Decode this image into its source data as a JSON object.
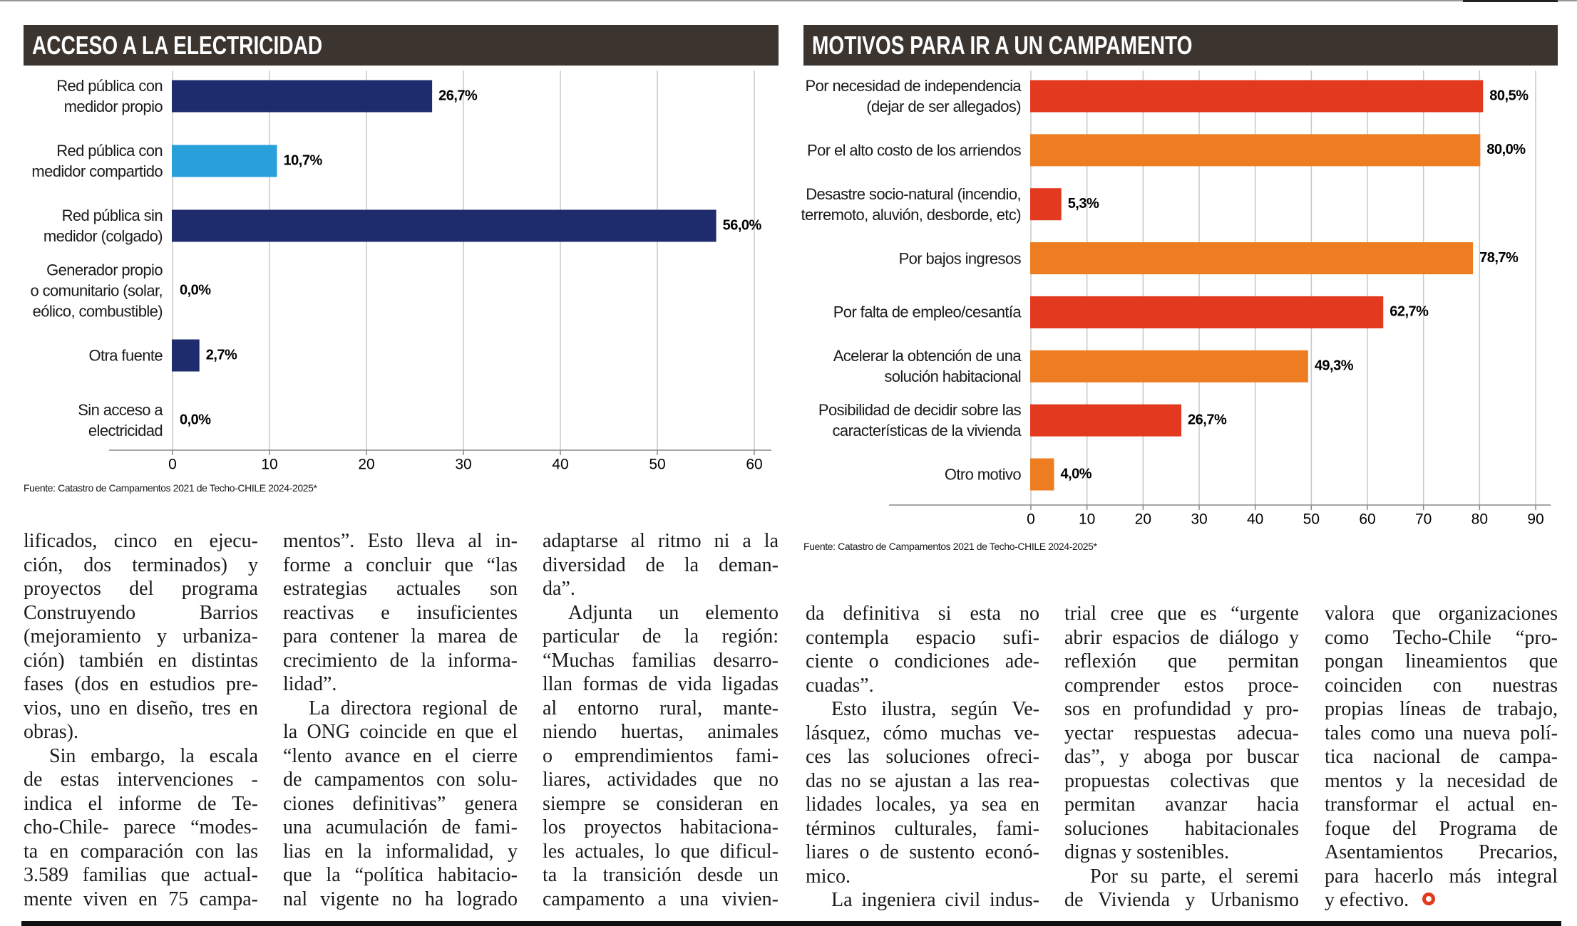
{
  "chart_data": [
    {
      "type": "bar",
      "orientation": "horizontal",
      "title": "ACCESO A LA ELECTRICIDAD",
      "categories": [
        "Red pública con\nmedidor propio",
        "Red pública con\nmedidor compartido",
        "Red pública sin\nmedidor (colgado)",
        "Generador propio\no comunitario (solar,\neólico, combustible)",
        "Otra fuente",
        "Sin acceso a\nelectricidad"
      ],
      "values": [
        26.7,
        10.7,
        56.0,
        0.0,
        2.7,
        0.0
      ],
      "value_labels": [
        "26,7%",
        "10,7%",
        "56,0%",
        "0,0%",
        "2,7%",
        "0,0%"
      ],
      "colors": [
        "#1e2c6e",
        "#2aa0da",
        "#1e2c6e",
        "#2aa0da",
        "#1e2c6e",
        "#2aa0da"
      ],
      "xlim": [
        0,
        60
      ],
      "xticks": [
        0,
        10,
        20,
        30,
        40,
        50,
        60
      ],
      "grid": true,
      "source": "Fuente: Catastro de Campamentos 2021 de Techo-CHILE 2024-2025*"
    },
    {
      "type": "bar",
      "orientation": "horizontal",
      "title": "MOTIVOS PARA IR A UN CAMPAMENTO",
      "categories": [
        "Por necesidad de independencia\n(dejar de ser allegados)",
        "Por el alto costo de los arriendos",
        "Desastre socio-natural (incendio,\nterremoto, aluvión, desborde, etc)",
        "Por bajos ingresos",
        "Por falta de empleo/cesantía",
        "Acelerar la obtención de una\nsolución habitacional",
        "Posibilidad de decidir sobre las\ncaracterísticas de la vivienda",
        "Otro motivo"
      ],
      "values": [
        80.5,
        80.0,
        5.3,
        78.7,
        62.7,
        49.3,
        26.7,
        4.0
      ],
      "value_labels": [
        "80,5%",
        "80,0%",
        "5,3%",
        "78,7%",
        "62,7%",
        "49,3%",
        "26,7%",
        "4,0%"
      ],
      "colors": [
        "#e2391f",
        "#ee7d22",
        "#e2391f",
        "#ee7d22",
        "#e2391f",
        "#ee7d22",
        "#e2391f",
        "#ee7d22"
      ],
      "xlim": [
        0,
        90
      ],
      "xticks": [
        0,
        10,
        20,
        30,
        40,
        50,
        60,
        70,
        80,
        90
      ],
      "grid": true,
      "source": "Fuente: Catastro de Campamentos 2021 de Techo-CHILE 2024-2025*"
    }
  ],
  "article": {
    "columns": [
      [
        [
          "lificados, cinco en ejecu-",
          "ción, dos terminados) y",
          "proyectos del programa",
          "Construyendo Barrios",
          "(mejoramiento y urbaniza-",
          "ción) también en distintas",
          "fases (dos en estudios pre-",
          "vios, uno en diseño, tres en",
          "obras)."
        ],
        [
          "Sin embargo, la escala",
          "de estas intervenciones -",
          "indica el informe de Te-",
          "cho-Chile- parece “modes-",
          "ta en comparación con las",
          "3.589 familias que actual-",
          "mente viven en 75 campa-"
        ]
      ],
      [
        [
          "mentos”. Esto lleva al in-",
          "forme a concluir que “las",
          "estrategias actuales son",
          "reactivas e insuficientes",
          "para contener la marea de",
          "crecimiento de la informa-",
          "lidad”."
        ],
        [
          "La directora regional de",
          "la ONG coincide en que el",
          "“lento avance en el cierre",
          "de campamentos con solu-",
          "ciones definitivas” genera",
          "una acumulación de fami-",
          "lias en la informalidad, y",
          "que la “política habitacio-",
          "nal vigente no ha logrado"
        ]
      ],
      [
        [
          "adaptarse al ritmo ni a la",
          "diversidad de la deman-",
          "da”."
        ],
        [
          "Adjunta un elemento",
          "particular de la región:",
          "“Muchas familias desarro-",
          "llan formas de vida ligadas",
          "al entorno rural, mante-",
          "niendo huertas, animales",
          "o emprendimientos fami-",
          "liares, actividades que no",
          "siempre se consideran en",
          "los proyectos habitaciona-",
          "les actuales, lo que dificul-",
          "ta la transición desde un",
          "campamento a una vivien-"
        ]
      ],
      [
        [
          "da definitiva si esta no",
          "contempla espacio sufi-",
          "ciente o condiciones ade-",
          "cuadas”."
        ],
        [
          "Esto ilustra, según Ve-",
          "lásquez, cómo muchas ve-",
          "ces las soluciones ofreci-",
          "das no se ajustan a las rea-",
          "lidades locales, ya sea en",
          "términos culturales, fami-",
          "liares o de sustento econó-",
          "mico."
        ],
        [
          "La ingeniera civil indus-"
        ]
      ],
      [
        [
          "trial cree que es “urgente",
          "abrir espacios de diálogo y",
          "reflexión que permitan",
          "comprender estos proce-",
          "sos en profundidad y pro-",
          "yectar respuestas adecua-",
          "das”, y aboga por buscar",
          "propuestas colectivas que",
          "permitan avanzar hacia",
          "soluciones habitacionales",
          "dignas y sostenibles."
        ],
        [
          "Por su parte, el seremi",
          "de Vivienda y Urbanismo"
        ]
      ],
      [
        [
          "valora que organizaciones",
          "como Techo-Chile “pro-",
          "pongan lineamientos que",
          "coinciden con nuestras",
          "propias líneas de trabajo,",
          "tales como una nueva polí-",
          "tica nacional de campa-",
          "mentos y la necesidad de",
          "transformar el actual en-",
          "foque del Programa de",
          "Asentamientos Precarios,",
          "para hacerlo más integral",
          "y efectivo."
        ]
      ]
    ]
  }
}
